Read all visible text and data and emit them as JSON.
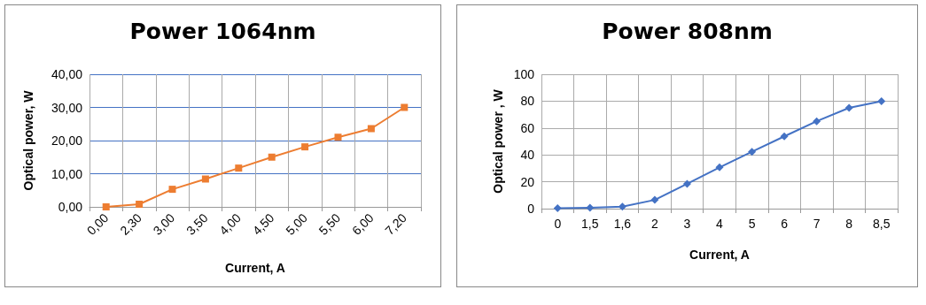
{
  "chart_data": [
    {
      "type": "line",
      "title": "Power 1064nm",
      "xlabel": "Current, A",
      "ylabel": "Optical power, W",
      "categories": [
        "0,00",
        "2,30",
        "3,00",
        "3,50",
        "4,00",
        "4,50",
        "5,00",
        "5,50",
        "6,00",
        "7,20"
      ],
      "series": [
        {
          "color": "#ed7d31",
          "values": [
            0,
            0.8,
            5.3,
            8.4,
            11.7,
            15,
            18.1,
            21,
            23.6,
            30
          ]
        }
      ],
      "ylim": [
        0,
        40
      ],
      "yticks": [
        {
          "value": 0,
          "label": "0,00"
        },
        {
          "value": 10,
          "label": "10,00"
        },
        {
          "value": 20,
          "label": "20,00"
        },
        {
          "value": 30,
          "label": "30,00"
        },
        {
          "value": 40,
          "label": "40,00"
        }
      ],
      "grid": true,
      "marker": "square",
      "line_style": "solid"
    },
    {
      "type": "line",
      "title": "Power 808nm",
      "xlabel": "Current, A",
      "ylabel": "Optical power , W",
      "categories": [
        "0",
        "1,5",
        "1,6",
        "2",
        "3",
        "4",
        "5",
        "6",
        "7",
        "8",
        "8,5"
      ],
      "series": [
        {
          "color": "#4472c4",
          "values": [
            0.3,
            0.7,
            1.5,
            6.5,
            18.5,
            30.7,
            42.3,
            53.8,
            65,
            75,
            80
          ]
        }
      ],
      "ylim": [
        0,
        100
      ],
      "yticks": [
        0,
        20,
        40,
        60,
        80,
        100
      ],
      "grid": true,
      "marker": "diamond",
      "line_style": "solid"
    }
  ]
}
